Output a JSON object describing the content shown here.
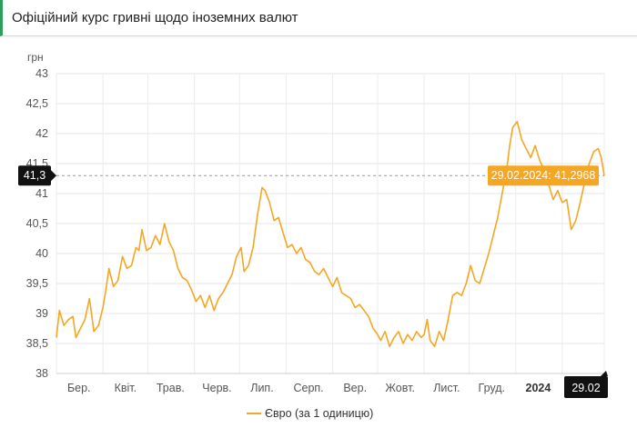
{
  "header": {
    "title": "Офіційний курс гривні щодо іноземних валют"
  },
  "chart_data": {
    "type": "line",
    "ylabel": "грн",
    "ylim": [
      38,
      43
    ],
    "yticks": [
      "43",
      "42,5",
      "42",
      "41,5",
      "41",
      "40,5",
      "40",
      "39,5",
      "39",
      "38,5",
      "38"
    ],
    "x_labels": [
      "Бер.",
      "Квіт.",
      "Трав.",
      "Черв.",
      "Лип.",
      "Серп.",
      "Вер.",
      "Жовт.",
      "Лист.",
      "Груд.",
      "2024",
      "29.02"
    ],
    "x_range": [
      "2023-03-01",
      "2024-02-29"
    ],
    "grid": true,
    "legend": "bottom",
    "current_value_label": "41,3",
    "tooltip": "29.02.2024: 41,2968",
    "series": [
      {
        "name": "Євро (за 1 одиницю)",
        "color": "#f5a623",
        "points": [
          [
            "2023-03-01",
            38.6
          ],
          [
            "2023-03-03",
            39.05
          ],
          [
            "2023-03-06",
            38.8
          ],
          [
            "2023-03-09",
            38.9
          ],
          [
            "2023-03-12",
            38.95
          ],
          [
            "2023-03-14",
            38.6
          ],
          [
            "2023-03-17",
            38.75
          ],
          [
            "2023-03-20",
            38.9
          ],
          [
            "2023-03-23",
            39.25
          ],
          [
            "2023-03-26",
            38.7
          ],
          [
            "2023-03-29",
            38.8
          ],
          [
            "2023-04-01",
            39.1
          ],
          [
            "2023-04-03",
            39.4
          ],
          [
            "2023-04-05",
            39.75
          ],
          [
            "2023-04-08",
            39.45
          ],
          [
            "2023-04-11",
            39.55
          ],
          [
            "2023-04-14",
            39.95
          ],
          [
            "2023-04-17",
            39.75
          ],
          [
            "2023-04-20",
            39.8
          ],
          [
            "2023-04-23",
            40.1
          ],
          [
            "2023-04-25",
            40.05
          ],
          [
            "2023-04-27",
            40.4
          ],
          [
            "2023-04-30",
            40.05
          ],
          [
            "2023-05-03",
            40.1
          ],
          [
            "2023-05-06",
            40.3
          ],
          [
            "2023-05-09",
            40.15
          ],
          [
            "2023-05-12",
            40.5
          ],
          [
            "2023-05-15",
            40.2
          ],
          [
            "2023-05-18",
            40.05
          ],
          [
            "2023-05-21",
            39.75
          ],
          [
            "2023-05-24",
            39.6
          ],
          [
            "2023-05-27",
            39.55
          ],
          [
            "2023-05-30",
            39.4
          ],
          [
            "2023-06-02",
            39.2
          ],
          [
            "2023-06-05",
            39.3
          ],
          [
            "2023-06-08",
            39.1
          ],
          [
            "2023-06-11",
            39.3
          ],
          [
            "2023-06-14",
            39.05
          ],
          [
            "2023-06-17",
            39.25
          ],
          [
            "2023-06-20",
            39.35
          ],
          [
            "2023-06-23",
            39.5
          ],
          [
            "2023-06-26",
            39.65
          ],
          [
            "2023-06-29",
            39.95
          ],
          [
            "2023-07-02",
            40.1
          ],
          [
            "2023-07-04",
            39.7
          ],
          [
            "2023-07-07",
            39.8
          ],
          [
            "2023-07-10",
            40.1
          ],
          [
            "2023-07-13",
            40.65
          ],
          [
            "2023-07-16",
            41.1
          ],
          [
            "2023-07-18",
            41.05
          ],
          [
            "2023-07-21",
            40.85
          ],
          [
            "2023-07-24",
            40.55
          ],
          [
            "2023-07-27",
            40.6
          ],
          [
            "2023-07-30",
            40.35
          ],
          [
            "2023-08-02",
            40.1
          ],
          [
            "2023-08-05",
            40.15
          ],
          [
            "2023-08-08",
            40.0
          ],
          [
            "2023-08-11",
            40.1
          ],
          [
            "2023-08-14",
            39.9
          ],
          [
            "2023-08-17",
            39.85
          ],
          [
            "2023-08-20",
            39.7
          ],
          [
            "2023-08-23",
            39.65
          ],
          [
            "2023-08-26",
            39.75
          ],
          [
            "2023-08-29",
            39.6
          ],
          [
            "2023-09-01",
            39.45
          ],
          [
            "2023-09-04",
            39.6
          ],
          [
            "2023-09-07",
            39.35
          ],
          [
            "2023-09-10",
            39.3
          ],
          [
            "2023-09-13",
            39.25
          ],
          [
            "2023-09-16",
            39.1
          ],
          [
            "2023-09-19",
            39.15
          ],
          [
            "2023-09-22",
            39.05
          ],
          [
            "2023-09-25",
            38.95
          ],
          [
            "2023-09-28",
            38.75
          ],
          [
            "2023-10-01",
            38.65
          ],
          [
            "2023-10-03",
            38.55
          ],
          [
            "2023-10-06",
            38.7
          ],
          [
            "2023-10-09",
            38.45
          ],
          [
            "2023-10-12",
            38.6
          ],
          [
            "2023-10-15",
            38.7
          ],
          [
            "2023-10-18",
            38.5
          ],
          [
            "2023-10-21",
            38.65
          ],
          [
            "2023-10-24",
            38.55
          ],
          [
            "2023-10-27",
            38.7
          ],
          [
            "2023-10-30",
            38.6
          ],
          [
            "2023-11-01",
            38.65
          ],
          [
            "2023-11-03",
            38.9
          ],
          [
            "2023-11-05",
            38.55
          ],
          [
            "2023-11-08",
            38.45
          ],
          [
            "2023-11-11",
            38.7
          ],
          [
            "2023-11-14",
            38.55
          ],
          [
            "2023-11-17",
            38.9
          ],
          [
            "2023-11-20",
            39.3
          ],
          [
            "2023-11-23",
            39.35
          ],
          [
            "2023-11-26",
            39.3
          ],
          [
            "2023-11-29",
            39.5
          ],
          [
            "2023-12-02",
            39.8
          ],
          [
            "2023-12-05",
            39.55
          ],
          [
            "2023-12-08",
            39.5
          ],
          [
            "2023-12-11",
            39.75
          ],
          [
            "2023-12-14",
            40.0
          ],
          [
            "2023-12-17",
            40.3
          ],
          [
            "2023-12-20",
            40.6
          ],
          [
            "2023-12-23",
            41.0
          ],
          [
            "2023-12-26",
            41.4
          ],
          [
            "2023-12-28",
            41.8
          ],
          [
            "2023-12-30",
            42.1
          ],
          [
            "2024-01-02",
            42.2
          ],
          [
            "2024-01-05",
            41.9
          ],
          [
            "2024-01-08",
            41.75
          ],
          [
            "2024-01-11",
            41.6
          ],
          [
            "2024-01-14",
            41.8
          ],
          [
            "2024-01-17",
            41.55
          ],
          [
            "2024-01-20",
            41.4
          ],
          [
            "2024-01-23",
            41.15
          ],
          [
            "2024-01-26",
            40.9
          ],
          [
            "2024-01-29",
            41.05
          ],
          [
            "2024-02-01",
            40.85
          ],
          [
            "2024-02-04",
            40.9
          ],
          [
            "2024-02-07",
            40.4
          ],
          [
            "2024-02-10",
            40.55
          ],
          [
            "2024-02-13",
            40.85
          ],
          [
            "2024-02-16",
            41.2
          ],
          [
            "2024-02-19",
            41.5
          ],
          [
            "2024-02-22",
            41.7
          ],
          [
            "2024-02-25",
            41.75
          ],
          [
            "2024-02-27",
            41.6
          ],
          [
            "2024-02-29",
            41.3
          ]
        ]
      }
    ]
  }
}
